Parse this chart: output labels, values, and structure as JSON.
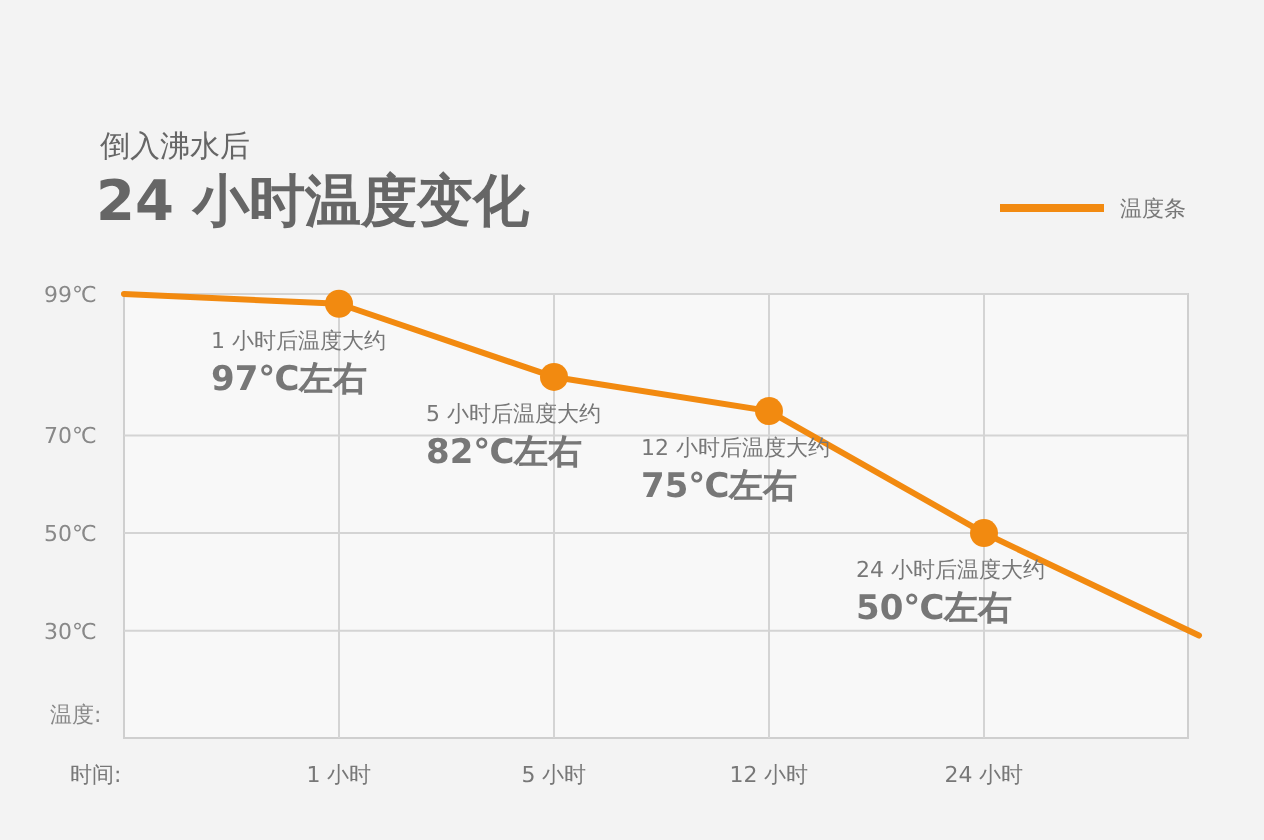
{
  "chart_data": {
    "type": "line",
    "title": "24 小时温度变化",
    "subtitle": "倒入沸水后",
    "xlabel": "时间:",
    "ylabel": "温度:",
    "categories": [
      null,
      "1 小时",
      "5 小时",
      "12 小时",
      "24 小时",
      null
    ],
    "series": [
      {
        "name": "温度条",
        "color": "#f28a10",
        "marker": "none",
        "values": [
          99,
          97,
          82,
          75,
          50,
          29
        ]
      },
      {
        "type": "scatter",
        "color": "#f28a10",
        "marker": "circle",
        "values": [
          null,
          97,
          82,
          75,
          50,
          null
        ]
      }
    ],
    "ylim": [
      8,
      99
    ],
    "yticks": [
      {
        "value": 99,
        "label": "99℃"
      },
      {
        "value": 70,
        "label": "70℃"
      },
      {
        "value": 50,
        "label": "50℃"
      },
      {
        "value": 30,
        "label": "30℃"
      }
    ],
    "grid": true,
    "legend": "top right",
    "annotations": [
      {
        "text": "1 小时后温度大约",
        "x": "1 小时",
        "y": 97
      },
      {
        "text": "97℃左右",
        "x": "1 小时",
        "y": 97
      },
      {
        "text": "5 小时后温度大约",
        "x": "5 小时",
        "y": 82
      },
      {
        "text": "82℃左右",
        "x": "5 小时",
        "y": 82
      },
      {
        "text": "12 小时后温度大约",
        "x": "12 小时",
        "y": 75
      },
      {
        "text": "75℃左右",
        "x": "12 小时",
        "y": 75
      },
      {
        "text": "24 小时后温度大约",
        "x": "24 小时",
        "y": 50
      },
      {
        "text": "50℃左右",
        "x": "24 小时",
        "y": 50
      }
    ]
  }
}
